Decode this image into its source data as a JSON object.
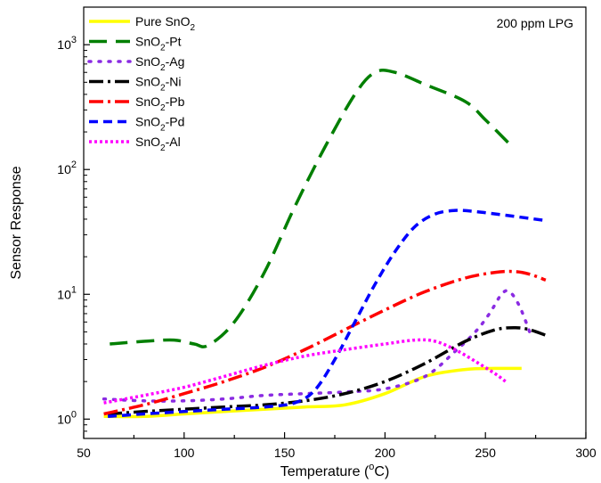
{
  "chart_data": {
    "type": "line",
    "annotation": "200 ppm LPG",
    "xlabel": {
      "text": "Temperature (",
      "sup": "o",
      "tail": "C)"
    },
    "ylabel": "Sensor Response",
    "xlim": [
      50,
      300
    ],
    "ylim": [
      0.7,
      2000
    ],
    "yscale": "log",
    "grid": false,
    "legend_position": "top-left",
    "x_ticks": [
      50,
      100,
      150,
      200,
      250,
      300
    ],
    "x_tick_labels": [
      "50",
      "100",
      "150",
      "200",
      "250",
      "300"
    ],
    "y_ticks": [
      {
        "value": 1,
        "base": "10",
        "exp": "0"
      },
      {
        "value": 10,
        "base": "10",
        "exp": "1"
      },
      {
        "value": 100,
        "base": "10",
        "exp": "2"
      },
      {
        "value": 1000,
        "base": "10",
        "exp": "3"
      }
    ],
    "series": [
      {
        "id": "pure",
        "name": "Pure SnO",
        "sub": "2",
        "suffix": "",
        "color": "#ffff00",
        "dash": "none",
        "x": [
          60,
          80,
          100,
          120,
          140,
          160,
          180,
          200,
          220,
          240,
          255,
          268
        ],
        "y": [
          1.05,
          1.05,
          1.1,
          1.15,
          1.2,
          1.25,
          1.3,
          1.6,
          2.2,
          2.5,
          2.55,
          2.55
        ]
      },
      {
        "id": "pt",
        "name": "SnO",
        "sub": "2",
        "suffix": "-Pt",
        "color": "#007f00",
        "dash": "20,10",
        "x": [
          63,
          80,
          95,
          105,
          112,
          125,
          140,
          155,
          170,
          185,
          195,
          205,
          220,
          240,
          250,
          262
        ],
        "y": [
          4,
          4.2,
          4.3,
          4.0,
          3.9,
          6,
          15,
          50,
          150,
          400,
          600,
          600,
          480,
          350,
          250,
          160
        ]
      },
      {
        "id": "ag",
        "name": "SnO",
        "sub": "2",
        "suffix": "-Ag",
        "color": "#8a2be2",
        "dash": "2,9",
        "x": [
          60,
          80,
          100,
          120,
          140,
          160,
          180,
          200,
          220,
          235,
          245,
          252,
          258,
          262,
          267,
          272
        ],
        "y": [
          1.45,
          1.4,
          1.4,
          1.45,
          1.55,
          1.6,
          1.65,
          1.75,
          2.2,
          3.5,
          5,
          7,
          10,
          10.5,
          8,
          5
        ]
      },
      {
        "id": "ni",
        "name": "SnO",
        "sub": "2",
        "suffix": "-Ni",
        "color": "#000000",
        "dash": "16,5,3,5",
        "x": [
          62,
          80,
          100,
          120,
          140,
          160,
          180,
          200,
          220,
          240,
          255,
          265,
          272,
          280
        ],
        "y": [
          1.1,
          1.15,
          1.2,
          1.25,
          1.3,
          1.4,
          1.6,
          2.0,
          2.8,
          4.2,
          5.2,
          5.4,
          5.2,
          4.7
        ]
      },
      {
        "id": "pb",
        "name": "SnO",
        "sub": "2",
        "suffix": "-Pb",
        "color": "#ff0000",
        "dash": "16,5,3,5",
        "x": [
          60,
          80,
          100,
          120,
          140,
          160,
          180,
          200,
          220,
          240,
          255,
          265,
          272,
          280
        ],
        "y": [
          1.1,
          1.3,
          1.6,
          2.0,
          2.6,
          3.6,
          5.2,
          7.5,
          10.5,
          13.5,
          15,
          15.2,
          14.5,
          13
        ]
      },
      {
        "id": "pd",
        "name": "SnO",
        "sub": "2",
        "suffix": "-Pd",
        "color": "#0000ff",
        "dash": "10,6",
        "x": [
          62,
          80,
          100,
          120,
          140,
          155,
          165,
          175,
          185,
          195,
          205,
          215,
          225,
          235,
          245,
          260,
          280
        ],
        "y": [
          1.05,
          1.1,
          1.15,
          1.2,
          1.25,
          1.35,
          1.7,
          3.0,
          6.0,
          12,
          22,
          35,
          44,
          47,
          46,
          43,
          39
        ]
      },
      {
        "id": "al",
        "name": "SnO",
        "sub": "2",
        "suffix": "-Al",
        "color": "#ff00ff",
        "dash": "3,3",
        "x": [
          60,
          80,
          100,
          120,
          140,
          160,
          180,
          200,
          215,
          225,
          235,
          245,
          255,
          260
        ],
        "y": [
          1.35,
          1.55,
          1.8,
          2.2,
          2.7,
          3.2,
          3.6,
          4.0,
          4.3,
          4.2,
          3.6,
          2.9,
          2.3,
          2.0
        ]
      }
    ]
  }
}
